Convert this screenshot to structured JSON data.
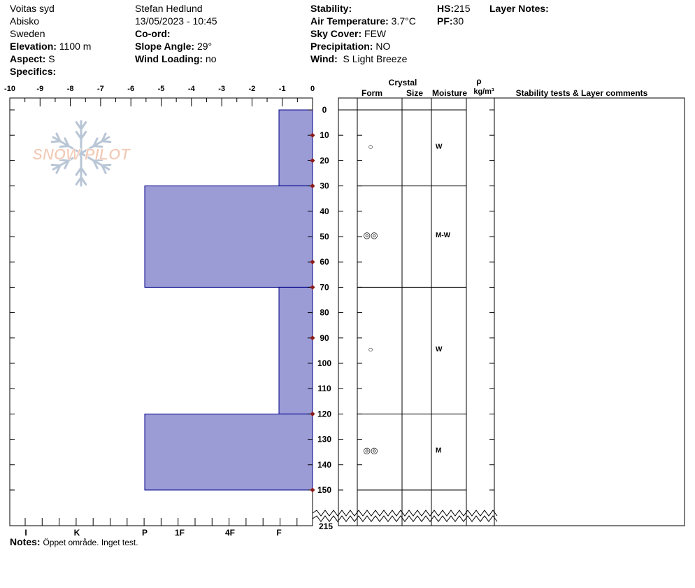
{
  "header": {
    "location": "Voitas syd",
    "region": "Abisko",
    "country": "Sweden",
    "elevation_label": "Elevation:",
    "elevation": "1100 m",
    "aspect_label": "Aspect:",
    "aspect": "S",
    "specifics_label": "Specifics:",
    "observer": "Stefan Hedlund",
    "datetime": "13/05/2023 - 10:45",
    "coord_label": "Co-ord:",
    "slope_label": "Slope Angle:",
    "slope": "29°",
    "wind_loading_label": "Wind Loading:",
    "wind_loading": "no",
    "stability_label": "Stability:",
    "air_temp_label": "Air Temperature:",
    "air_temp": "3.7°C",
    "sky_label": "Sky Cover:",
    "sky": "FEW",
    "precip_label": "Precipitation:",
    "precip": "NO",
    "wind_label": "Wind:",
    "wind": "S Light Breeze",
    "hs_label": "HS:",
    "hs": "215",
    "pf_label": "PF:",
    "pf": "30",
    "layer_notes_label": "Layer Notes:"
  },
  "logo_text": "SNOW PILOT",
  "columns": {
    "crystal": "Crystal",
    "form": "Form",
    "size": "Size",
    "moisture": "Moisture",
    "rho": "ρ",
    "density_unit": "kg/m³",
    "stability_tests": "Stability tests & Layer comments"
  },
  "notes": {
    "label": "Notes:",
    "text": "Öppet område.  Inget test."
  },
  "colors": {
    "layer_fill": "#9b9bd6",
    "layer_stroke": "#00008b",
    "temp_marker": "#8b1a1a",
    "logo": "#f2cbb8",
    "flake": "#b9c6d6"
  },
  "chart_data": {
    "type": "snow-profile",
    "temperature_axis": {
      "ticks": [
        "-10",
        "-9",
        "-8",
        "-7",
        "-6",
        "-5",
        "-4",
        "-3",
        "-2",
        "-1",
        "0"
      ],
      "range": [
        -10,
        0
      ]
    },
    "hardness_axis": {
      "ticks": [
        "I",
        "K",
        "P",
        "1F",
        "4F",
        "F"
      ]
    },
    "depth_axis": {
      "ticks": [
        "0",
        "10",
        "20",
        "30",
        "40",
        "50",
        "60",
        "70",
        "80",
        "90",
        "100",
        "110",
        "120",
        "130",
        "140",
        "150"
      ],
      "range": [
        0,
        150
      ],
      "bottom_label": "215"
    },
    "temperature_depths": [
      10,
      20,
      30,
      60,
      70,
      90,
      120,
      150
    ],
    "layers": [
      {
        "top": 0,
        "bottom": 30,
        "hardness": "F",
        "form": "○",
        "moisture": "W"
      },
      {
        "top": 30,
        "bottom": 70,
        "hardness": "P",
        "form": "◎◎",
        "moisture": "M-W"
      },
      {
        "top": 70,
        "bottom": 120,
        "hardness": "F",
        "form": "○",
        "moisture": "W"
      },
      {
        "top": 120,
        "bottom": 150,
        "hardness": "P",
        "form": "◎◎",
        "moisture": "M"
      }
    ]
  }
}
